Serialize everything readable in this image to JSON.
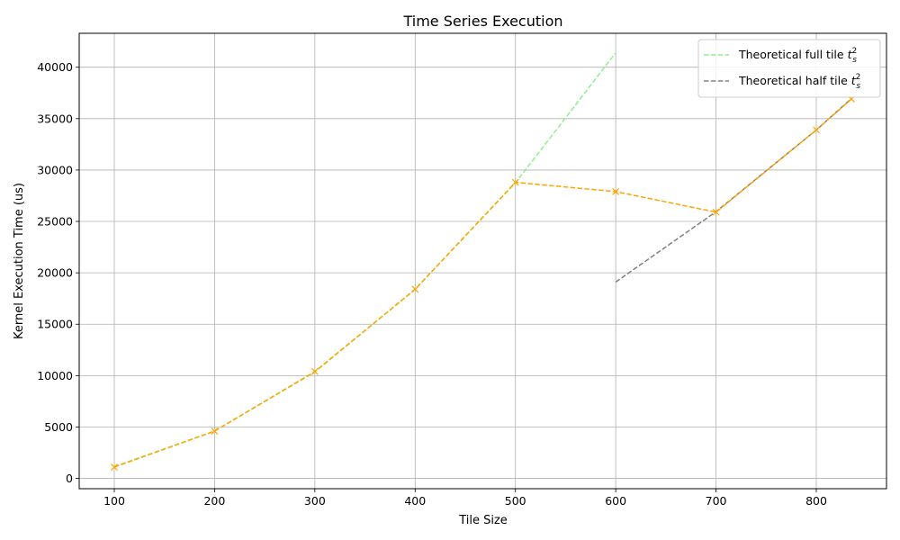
{
  "chart_data": {
    "type": "line",
    "title": "Time Series Execution",
    "xlabel": "Tile Size",
    "ylabel": "Kernel Execution Time (us)",
    "xlim": [
      65,
      870
    ],
    "ylim": [
      -1000,
      43300
    ],
    "xticks": [
      100,
      200,
      300,
      400,
      500,
      600,
      700,
      800
    ],
    "yticks": [
      0,
      5000,
      10000,
      15000,
      20000,
      25000,
      30000,
      35000,
      40000
    ],
    "grid": true,
    "legend_position": "top-right",
    "series": [
      {
        "name": "",
        "color": "#ffa500",
        "style": "dashed",
        "marker": "x",
        "x": [
          100,
          200,
          300,
          400,
          500,
          600,
          700,
          800,
          835
        ],
        "y": [
          1100,
          4600,
          10400,
          18400,
          28800,
          27900,
          25900,
          33900,
          36900
        ]
      },
      {
        "name": "Theoretical full tile",
        "name_math": "t",
        "name_sub": "s",
        "name_sup": "2",
        "color": "#90ee90",
        "style": "dashed",
        "x": [
          100,
          200,
          300,
          400,
          500,
          600
        ],
        "y": [
          1150,
          4600,
          10350,
          18400,
          28750,
          41400
        ]
      },
      {
        "name": "Theoretical half tile",
        "name_math": "t",
        "name_sub": "s",
        "name_sup": "2",
        "color": "#808080",
        "style": "dashed",
        "x": [
          600,
          700,
          800,
          835
        ],
        "y": [
          19100,
          25950,
          33900,
          36950
        ]
      }
    ]
  }
}
